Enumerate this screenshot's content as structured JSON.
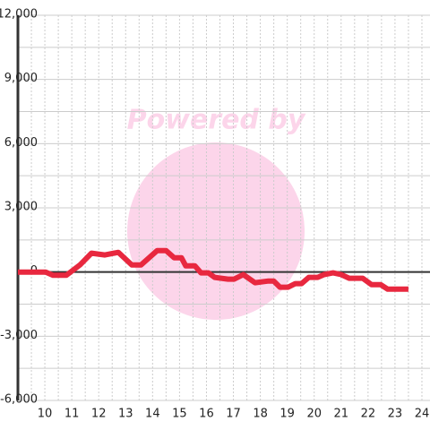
{
  "chart_data": {
    "type": "line",
    "watermark": "Powered by",
    "series": [
      {
        "color": "#e8283f",
        "x": [
          9,
          10.03,
          10.3,
          10.8,
          11.3,
          11.73,
          12.23,
          12.73,
          13.23,
          13.57,
          14.17,
          14.5,
          14.8,
          15.07,
          15.23,
          15.57,
          15.8,
          16.07,
          16.3,
          16.8,
          17.03,
          17.37,
          17.8,
          18.3,
          18.5,
          18.73,
          19.03,
          19.3,
          19.53,
          19.8,
          20.13,
          20.37,
          20.7,
          21,
          21.3,
          21.8,
          22.13,
          22.47,
          22.73,
          23.5
        ],
        "values": [
          0,
          0,
          -150,
          -150,
          330,
          880,
          800,
          920,
          330,
          330,
          1000,
          1000,
          670,
          670,
          290,
          290,
          -40,
          -40,
          -250,
          -330,
          -330,
          -120,
          -500,
          -420,
          -420,
          -710,
          -710,
          -540,
          -540,
          -250,
          -250,
          -120,
          -40,
          -120,
          -290,
          -290,
          -590,
          -590,
          -800,
          -800
        ]
      }
    ],
    "xlim": [
      9,
      24.3
    ],
    "xticks": [
      10,
      11,
      12,
      13,
      14,
      15,
      16,
      17,
      18,
      19,
      20,
      21,
      22,
      23,
      24
    ],
    "ylim": [
      -6000,
      12000
    ],
    "yticks": [
      {
        "value": -6000,
        "label": "-6,000"
      },
      {
        "value": -3000,
        "label": "-3,000"
      },
      0,
      {
        "value": 3000,
        "label": "3,000"
      },
      {
        "value": 6000,
        "label": "6,000"
      },
      {
        "value": 9000,
        "label": "9,000"
      },
      {
        "value": 12000,
        "label": "12,000"
      }
    ],
    "grid": true
  }
}
